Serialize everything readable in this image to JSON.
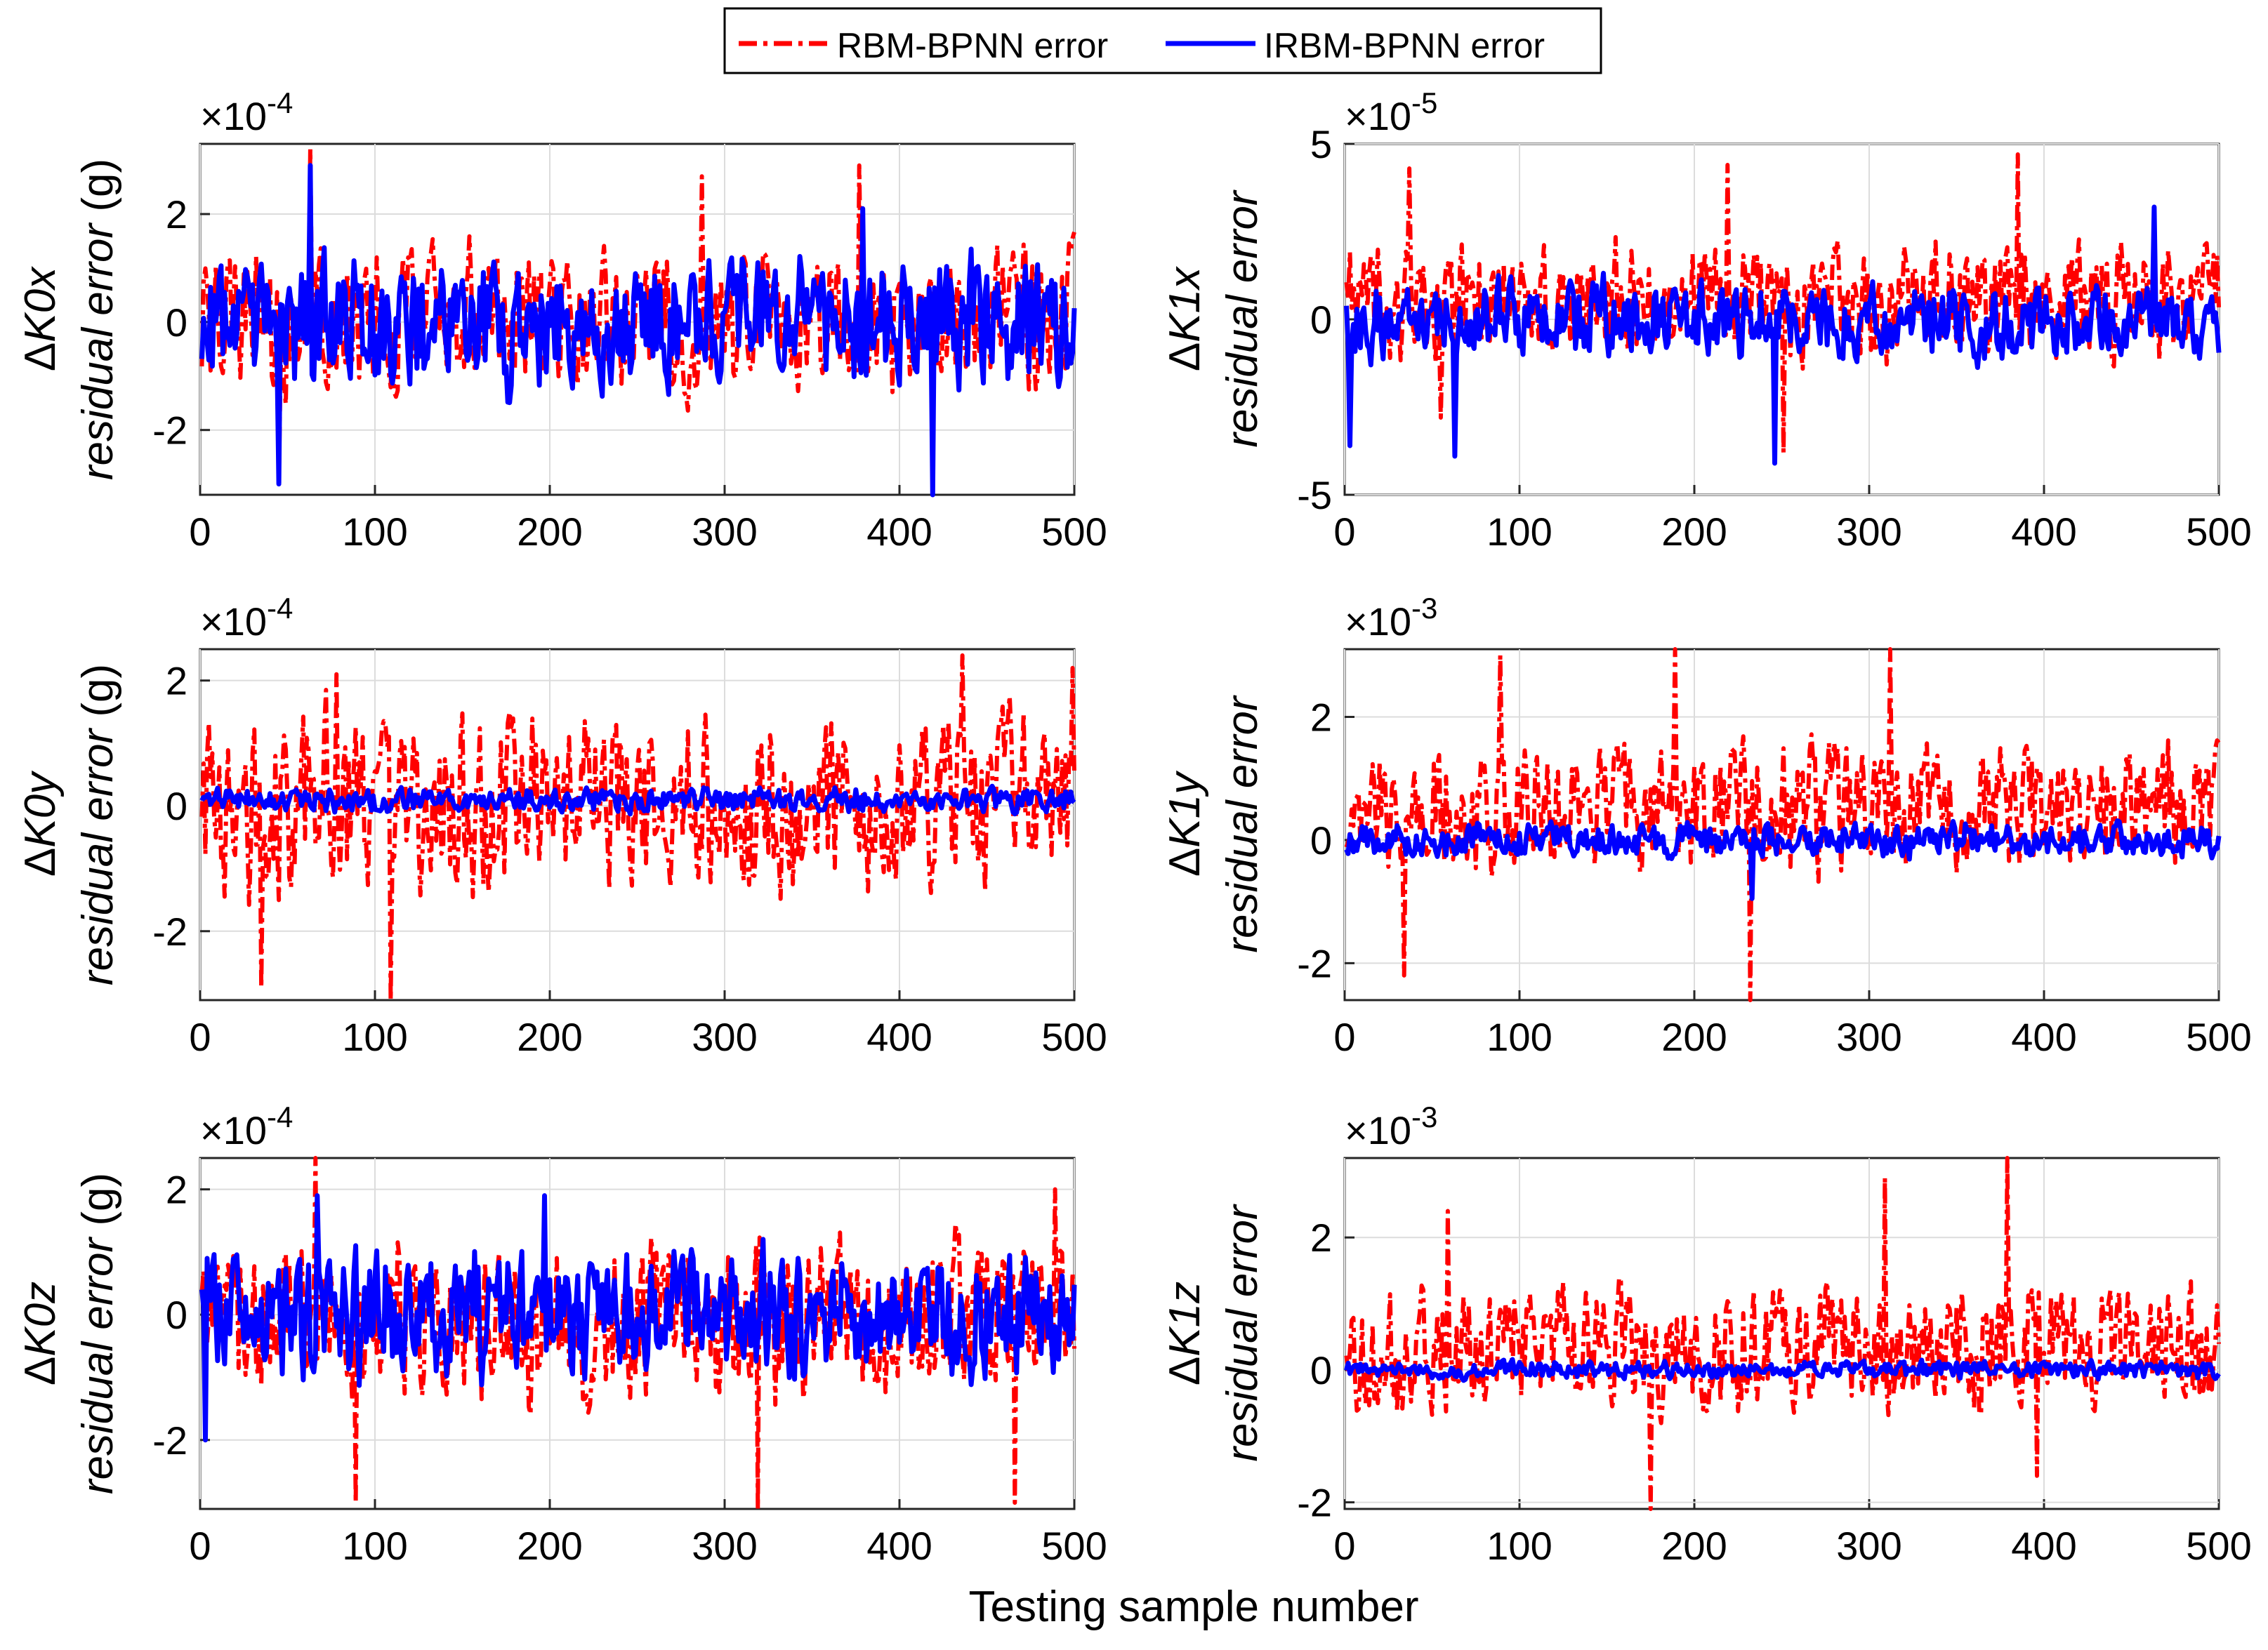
{
  "legend": {
    "entries": [
      {
        "label": "RBM-BPNN error",
        "color": "#ff0000",
        "style": "dash-dot"
      },
      {
        "label": "IRBM-BPNN error",
        "color": "#0000ff",
        "style": "solid"
      }
    ]
  },
  "xlabel": "Testing sample number",
  "chart_data": [
    {
      "type": "line",
      "id": "K0x",
      "ylabel_symbol": "Δ",
      "ylabel_var": "K0x",
      "ylabel_sub": "residual error",
      "ylabel_unit": " (g)",
      "exponent": "-4",
      "multiplier_symbol": "×",
      "multiplier_base": "10",
      "xlim": [
        0,
        500
      ],
      "ylim": [
        -3.2,
        3.3
      ],
      "xticks": [
        0,
        100,
        200,
        300,
        400,
        500
      ],
      "yticks": [
        -2,
        0,
        2
      ],
      "n_samples": 500,
      "series": [
        {
          "name": "RBM-BPNN error",
          "amp": 1.2,
          "bias": 0.0,
          "seed": 11,
          "spikes": [
            [
              62,
              3.2
            ],
            [
              376,
              2.9
            ],
            [
              286,
              2.7
            ],
            [
              44,
              -3.0
            ],
            [
              418,
              -3.2
            ]
          ]
        },
        {
          "name": "IRBM-BPNN error",
          "amp": 1.05,
          "bias": 0.0,
          "seed": 12,
          "spikes": [
            [
              62,
              2.9
            ],
            [
              44,
              -3.0
            ],
            [
              418,
              -3.2
            ],
            [
              378,
              2.1
            ]
          ]
        }
      ]
    },
    {
      "type": "line",
      "id": "K1x",
      "ylabel_symbol": "Δ",
      "ylabel_var": "K1x",
      "ylabel_sub": "residual error",
      "ylabel_unit": "",
      "exponent": "-5",
      "multiplier_symbol": "×",
      "multiplier_base": "10",
      "xlim": [
        0,
        500
      ],
      "ylim": [
        -5,
        5
      ],
      "xticks": [
        0,
        100,
        200,
        300,
        400,
        500
      ],
      "yticks": [
        -5,
        0,
        5
      ],
      "n_samples": 500,
      "series": [
        {
          "name": "RBM-BPNN error",
          "amp": 1.5,
          "bias": 0.5,
          "seed": 21,
          "spikes": [
            [
              384,
              4.7
            ],
            [
              36,
              4.3
            ],
            [
              218,
              4.4
            ],
            [
              250,
              -3.8
            ],
            [
              54,
              -2.8
            ]
          ]
        },
        {
          "name": "IRBM-BPNN error",
          "amp": 0.95,
          "bias": 0.0,
          "seed": 22,
          "spikes": [
            [
              62,
              -3.9
            ],
            [
              245,
              -4.1
            ],
            [
              2,
              -3.6
            ],
            [
              462,
              3.2
            ]
          ]
        }
      ]
    },
    {
      "type": "line",
      "id": "K0y",
      "ylabel_symbol": "Δ",
      "ylabel_var": "K0y",
      "ylabel_sub": "residual error",
      "ylabel_unit": " (g)",
      "exponent": "-4",
      "multiplier_symbol": "×",
      "multiplier_base": "10",
      "xlim": [
        0,
        500
      ],
      "ylim": [
        -3.1,
        2.5
      ],
      "xticks": [
        0,
        100,
        200,
        300,
        400,
        500
      ],
      "yticks": [
        -2,
        0,
        2
      ],
      "n_samples": 500,
      "series": [
        {
          "name": "RBM-BPNN error",
          "amp": 1.25,
          "bias": 0.0,
          "seed": 31,
          "spikes": [
            [
              435,
              2.4
            ],
            [
              108,
              -3.1
            ],
            [
              498,
              2.2
            ],
            [
              34,
              -2.9
            ],
            [
              77,
              2.1
            ]
          ]
        },
        {
          "name": "IRBM-BPNN error",
          "amp": 0.17,
          "bias": 0.1,
          "seed": 32,
          "spikes": []
        }
      ]
    },
    {
      "type": "line",
      "id": "K1y",
      "ylabel_symbol": "Δ",
      "ylabel_var": "K1y",
      "ylabel_sub": "residual error",
      "ylabel_unit": "",
      "exponent": "-3",
      "multiplier_symbol": "×",
      "multiplier_base": "10",
      "xlim": [
        0,
        500
      ],
      "ylim": [
        -2.6,
        3.1
      ],
      "xticks": [
        0,
        100,
        200,
        300,
        400,
        500
      ],
      "yticks": [
        -2,
        0,
        2
      ],
      "n_samples": 500,
      "series": [
        {
          "name": "RBM-BPNN error",
          "amp": 0.95,
          "bias": 0.5,
          "seed": 41,
          "spikes": [
            [
              311,
              3.1
            ],
            [
              88,
              3.0
            ],
            [
              188,
              3.1
            ],
            [
              231,
              -2.6
            ],
            [
              33,
              -2.2
            ]
          ]
        },
        {
          "name": "IRBM-BPNN error",
          "amp": 0.25,
          "bias": 0.0,
          "seed": 42,
          "spikes": [
            [
              232,
              -0.95
            ]
          ]
        }
      ]
    },
    {
      "type": "line",
      "id": "K0z",
      "ylabel_symbol": "Δ",
      "ylabel_var": "K0z",
      "ylabel_sub": "residual error",
      "ylabel_unit": " (g)",
      "exponent": "-4",
      "multiplier_symbol": "×",
      "multiplier_base": "10",
      "xlim": [
        0,
        500
      ],
      "ylim": [
        -3.1,
        2.5
      ],
      "xticks": [
        0,
        100,
        200,
        300,
        400,
        500
      ],
      "yticks": [
        -2,
        0,
        2
      ],
      "n_samples": 500,
      "series": [
        {
          "name": "RBM-BPNN error",
          "amp": 1.15,
          "bias": -0.1,
          "seed": 51,
          "spikes": [
            [
              65,
              2.5
            ],
            [
              88,
              -3.0
            ],
            [
              318,
              -3.1
            ],
            [
              465,
              -3.0
            ],
            [
              488,
              2.0
            ]
          ]
        },
        {
          "name": "IRBM-BPNN error",
          "amp": 0.9,
          "bias": 0.0,
          "seed": 52,
          "spikes": [
            [
              196,
              1.9
            ],
            [
              66,
              1.9
            ],
            [
              2,
              -2.0
            ]
          ]
        }
      ]
    },
    {
      "type": "line",
      "id": "K1z",
      "ylabel_symbol": "Δ",
      "ylabel_var": "K1z",
      "ylabel_sub": "residual error",
      "ylabel_unit": "",
      "exponent": "-3",
      "multiplier_symbol": "×",
      "multiplier_base": "10",
      "xlim": [
        0,
        500
      ],
      "ylim": [
        -2.1,
        3.2
      ],
      "xticks": [
        0,
        100,
        200,
        300,
        400,
        500
      ],
      "yticks": [
        -2,
        0,
        2
      ],
      "n_samples": 500,
      "series": [
        {
          "name": "RBM-BPNN error",
          "amp": 0.85,
          "bias": 0.3,
          "seed": 61,
          "spikes": [
            [
              378,
              3.2
            ],
            [
              308,
              2.9
            ],
            [
              174,
              -2.1
            ],
            [
              395,
              -1.6
            ],
            [
              58,
              2.4
            ]
          ]
        },
        {
          "name": "IRBM-BPNN error",
          "amp": 0.12,
          "bias": 0.0,
          "seed": 62,
          "spikes": []
        }
      ]
    }
  ]
}
